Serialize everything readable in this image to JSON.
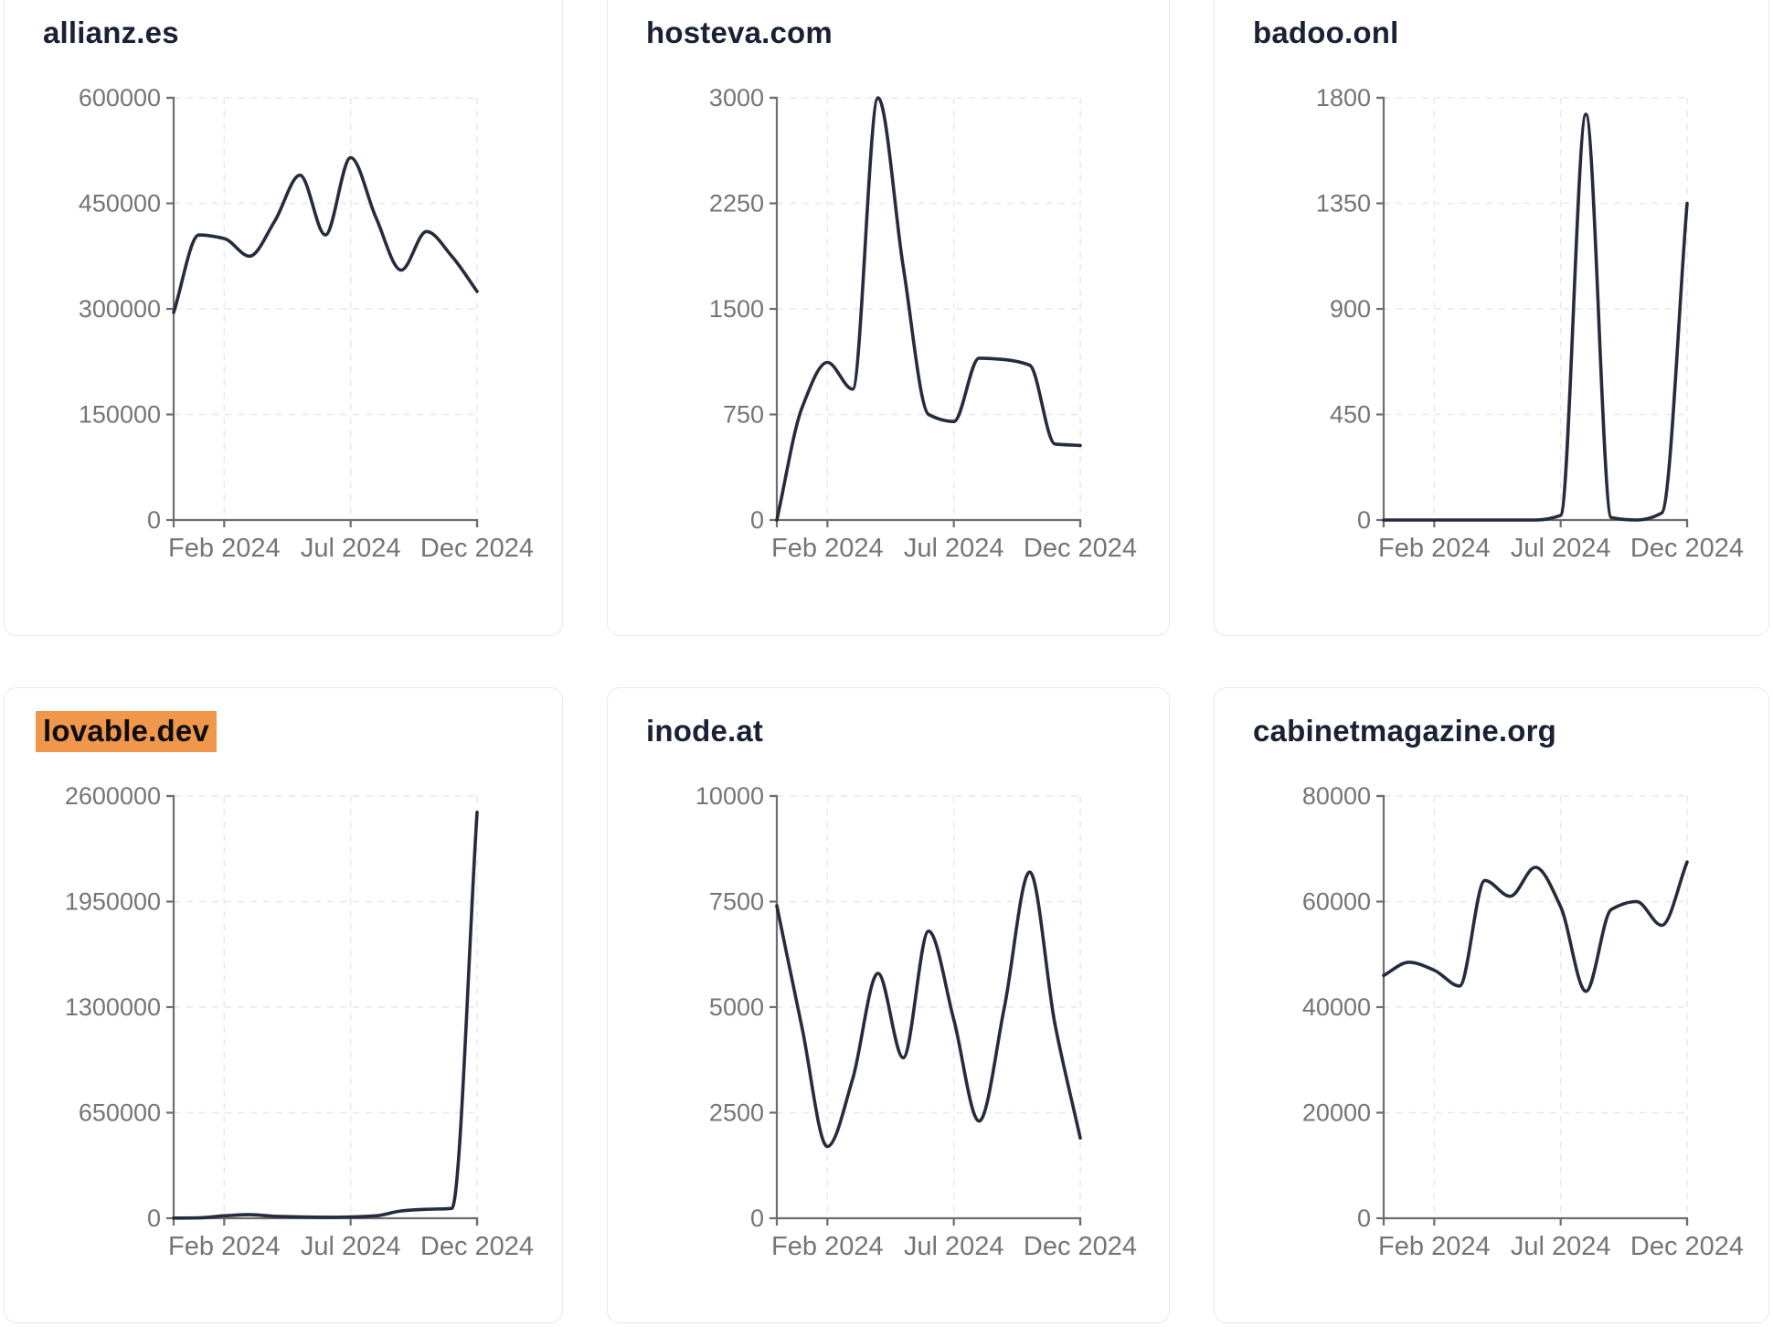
{
  "page": {
    "background": "#ffffff",
    "x_axis_ticks_shown": [
      "Feb 2024",
      "Jul 2024",
      "Dec 2024"
    ],
    "months": [
      "Dec 2023",
      "Jan 2024",
      "Feb 2024",
      "Mar 2024",
      "Apr 2024",
      "May 2024",
      "Jun 2024",
      "Jul 2024",
      "Aug 2024",
      "Sep 2024",
      "Oct 2024",
      "Nov 2024",
      "Dec 2024"
    ]
  },
  "styles": {
    "line_color": "#242c3d",
    "title_color": "#1b2135",
    "axis_color": "#6e6e6e",
    "grid_color": "#e9e9ec",
    "tick_label_color": "#757575",
    "card_border_color": "#e7e9ee",
    "highlight_color": "#f0974c",
    "highlight_text_color": "#0d0d0d"
  },
  "chart_data": [
    {
      "type": "line",
      "title": "allianz.es",
      "highlighted": false,
      "x": [
        "Dec 2023",
        "Jan 2024",
        "Feb 2024",
        "Mar 2024",
        "Apr 2024",
        "May 2024",
        "Jun 2024",
        "Jul 2024",
        "Aug 2024",
        "Sep 2024",
        "Oct 2024",
        "Nov 2024",
        "Dec 2024"
      ],
      "values": [
        295000,
        405000,
        400000,
        375000,
        425000,
        490000,
        405000,
        515000,
        430000,
        355000,
        410000,
        375000,
        325000
      ],
      "y_ticks": [
        0,
        150000,
        300000,
        450000,
        600000
      ],
      "ylim": [
        0,
        600000
      ],
      "x_ticks_shown": [
        "Feb 2024",
        "Jul 2024",
        "Dec 2024"
      ],
      "grid": true
    },
    {
      "type": "line",
      "title": "hosteva.com",
      "highlighted": false,
      "x": [
        "Dec 2023",
        "Jan 2024",
        "Feb 2024",
        "Mar 2024",
        "Apr 2024",
        "May 2024",
        "Jun 2024",
        "Jul 2024",
        "Aug 2024",
        "Sep 2024",
        "Oct 2024",
        "Nov 2024",
        "Dec 2024"
      ],
      "values": [
        0,
        800,
        1120,
        930,
        3000,
        1800,
        750,
        700,
        1150,
        1140,
        1100,
        540,
        530
      ],
      "y_ticks": [
        0,
        750,
        1500,
        2250,
        3000
      ],
      "ylim": [
        0,
        3000
      ],
      "x_ticks_shown": [
        "Feb 2024",
        "Jul 2024",
        "Dec 2024"
      ],
      "grid": true
    },
    {
      "type": "line",
      "title": "badoo.onl",
      "highlighted": false,
      "x": [
        "Dec 2023",
        "Jan 2024",
        "Feb 2024",
        "Mar 2024",
        "Apr 2024",
        "May 2024",
        "Jun 2024",
        "Jul 2024",
        "Aug 2024",
        "Sep 2024",
        "Oct 2024",
        "Nov 2024",
        "Dec 2024"
      ],
      "values": [
        0,
        0,
        0,
        0,
        0,
        0,
        0,
        20,
        1730,
        10,
        0,
        30,
        1350
      ],
      "y_ticks": [
        0,
        450,
        900,
        1350,
        1800
      ],
      "ylim": [
        0,
        1800
      ],
      "x_ticks_shown": [
        "Feb 2024",
        "Jul 2024",
        "Dec 2024"
      ],
      "grid": true
    },
    {
      "type": "line",
      "title": "lovable.dev",
      "highlighted": true,
      "x": [
        "Dec 2023",
        "Jan 2024",
        "Feb 2024",
        "Mar 2024",
        "Apr 2024",
        "May 2024",
        "Jun 2024",
        "Jul 2024",
        "Aug 2024",
        "Sep 2024",
        "Oct 2024",
        "Nov 2024",
        "Dec 2024"
      ],
      "values": [
        1000,
        2000,
        15000,
        22000,
        12000,
        8000,
        6000,
        8000,
        15000,
        45000,
        55000,
        60000,
        2500000
      ],
      "y_ticks": [
        0,
        650000,
        1300000,
        1950000,
        2600000
      ],
      "ylim": [
        0,
        2600000
      ],
      "x_ticks_shown": [
        "Feb 2024",
        "Jul 2024",
        "Dec 2024"
      ],
      "grid": true
    },
    {
      "type": "line",
      "title": "inode.at",
      "highlighted": false,
      "x": [
        "Dec 2023",
        "Jan 2024",
        "Feb 2024",
        "Mar 2024",
        "Apr 2024",
        "May 2024",
        "Jun 2024",
        "Jul 2024",
        "Aug 2024",
        "Sep 2024",
        "Oct 2024",
        "Nov 2024",
        "Dec 2024"
      ],
      "values": [
        7400,
        4500,
        1700,
        3300,
        5800,
        3800,
        6800,
        4700,
        2300,
        5000,
        8200,
        4600,
        1900
      ],
      "y_ticks": [
        0,
        2500,
        5000,
        7500,
        10000
      ],
      "ylim": [
        0,
        10000
      ],
      "x_ticks_shown": [
        "Feb 2024",
        "Jul 2024",
        "Dec 2024"
      ],
      "grid": true
    },
    {
      "type": "line",
      "title": "cabinetmagazine.org",
      "highlighted": false,
      "x": [
        "Dec 2023",
        "Jan 2024",
        "Feb 2024",
        "Mar 2024",
        "Apr 2024",
        "May 2024",
        "Jun 2024",
        "Jul 2024",
        "Aug 2024",
        "Sep 2024",
        "Oct 2024",
        "Nov 2024",
        "Dec 2024"
      ],
      "values": [
        46000,
        48500,
        47000,
        44000,
        64000,
        61000,
        66500,
        59000,
        43000,
        58500,
        60000,
        55500,
        67500
      ],
      "y_ticks": [
        0,
        20000,
        40000,
        60000,
        80000
      ],
      "ylim": [
        0,
        80000
      ],
      "x_ticks_shown": [
        "Feb 2024",
        "Jul 2024",
        "Dec 2024"
      ],
      "grid": true
    }
  ]
}
